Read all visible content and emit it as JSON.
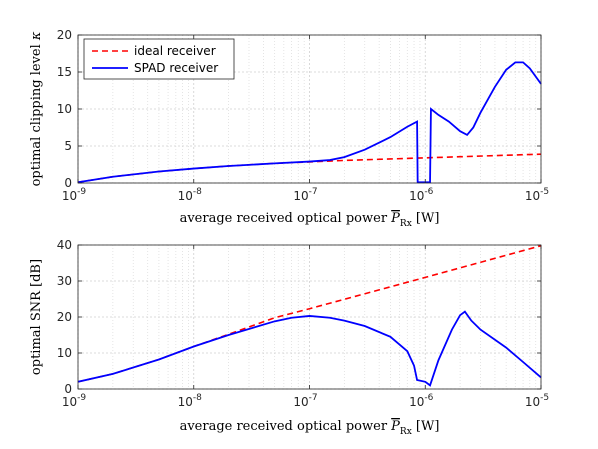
{
  "chart_data": [
    {
      "type": "line",
      "xscale": "log",
      "xlim": [
        1e-09,
        1e-05
      ],
      "ylim": [
        0,
        20
      ],
      "xticks": [
        1e-09,
        1e-08,
        1e-07,
        1e-06,
        1e-05
      ],
      "yticks": [
        0,
        5,
        10,
        15,
        20
      ],
      "ytick_labels": [
        "0",
        "5",
        "10",
        "15",
        "20"
      ],
      "grid": true,
      "legend": "top-left",
      "xlabel": "average received optical power P̅Rx [W]",
      "ylabel": "optimal clipping level κ",
      "series": [
        {
          "name": "ideal receiver",
          "style": "dashed",
          "color": "#ff0000",
          "x": [
            1e-09,
            2e-09,
            5e-09,
            1e-08,
            2e-08,
            5e-08,
            1e-07,
            2e-07,
            5e-07,
            1e-06,
            2e-06,
            5e-06,
            1e-05
          ],
          "y": [
            0.1,
            0.85,
            1.55,
            1.95,
            2.3,
            2.65,
            2.85,
            3.05,
            3.25,
            3.4,
            3.55,
            3.75,
            3.9
          ]
        },
        {
          "name": "SPAD receiver",
          "style": "solid",
          "color": "#0000ff",
          "x": [
            1e-09,
            2e-09,
            5e-09,
            1e-08,
            2e-08,
            5e-08,
            1e-07,
            1.5e-07,
            2e-07,
            3e-07,
            5e-07,
            7e-07,
            8.5e-07,
            8.6e-07,
            9e-07,
            1e-06,
            1.1e-06,
            1.12e-06,
            1.3e-06,
            1.6e-06,
            2e-06,
            2.3e-06,
            2.6e-06,
            3e-06,
            4e-06,
            5e-06,
            6e-06,
            7e-06,
            8e-06,
            1e-05
          ],
          "y": [
            0.1,
            0.85,
            1.55,
            1.95,
            2.3,
            2.65,
            2.9,
            3.1,
            3.5,
            4.5,
            6.2,
            7.6,
            8.3,
            0.1,
            0.1,
            0.1,
            0.1,
            10.0,
            9.2,
            8.3,
            7.0,
            6.5,
            7.5,
            9.5,
            13.0,
            15.3,
            16.3,
            16.3,
            15.5,
            13.4
          ]
        }
      ]
    },
    {
      "type": "line",
      "xscale": "log",
      "xlim": [
        1e-09,
        1e-05
      ],
      "ylim": [
        0,
        40
      ],
      "xticks": [
        1e-09,
        1e-08,
        1e-07,
        1e-06,
        1e-05
      ],
      "yticks": [
        0,
        10,
        20,
        30,
        40
      ],
      "ytick_labels": [
        "0",
        "10",
        "20",
        "30",
        "40"
      ],
      "grid": true,
      "xlabel": "average received optical power P̅Rx [W]",
      "ylabel": "optimal SNR [dB]",
      "series": [
        {
          "name": "ideal receiver",
          "style": "dashed",
          "color": "#ff0000",
          "x": [
            1e-09,
            2e-09,
            5e-09,
            1e-08,
            2e-08,
            5e-08,
            1e-07,
            1e-06,
            1e-05
          ],
          "y": [
            2,
            4.2,
            8.2,
            11.8,
            15.2,
            19.8,
            22.3,
            31.0,
            39.8
          ]
        },
        {
          "name": "SPAD receiver",
          "style": "solid",
          "color": "#0000ff",
          "x": [
            1e-09,
            2e-09,
            5e-09,
            1e-08,
            2e-08,
            5e-08,
            7e-08,
            1e-07,
            1.5e-07,
            2e-07,
            3e-07,
            5e-07,
            7e-07,
            8e-07,
            8.5e-07,
            1e-06,
            1.1e-06,
            1.3e-06,
            1.7e-06,
            2e-06,
            2.2e-06,
            2.5e-06,
            3e-06,
            5e-06,
            7e-06,
            1e-05
          ],
          "y": [
            2,
            4.2,
            8.2,
            11.8,
            15.0,
            18.8,
            19.8,
            20.3,
            19.8,
            19.0,
            17.5,
            14.5,
            10.5,
            6.5,
            2.5,
            2.0,
            1.0,
            8.0,
            16.5,
            20.5,
            21.5,
            19.0,
            16.5,
            11.5,
            7.5,
            3.2
          ]
        }
      ]
    }
  ]
}
